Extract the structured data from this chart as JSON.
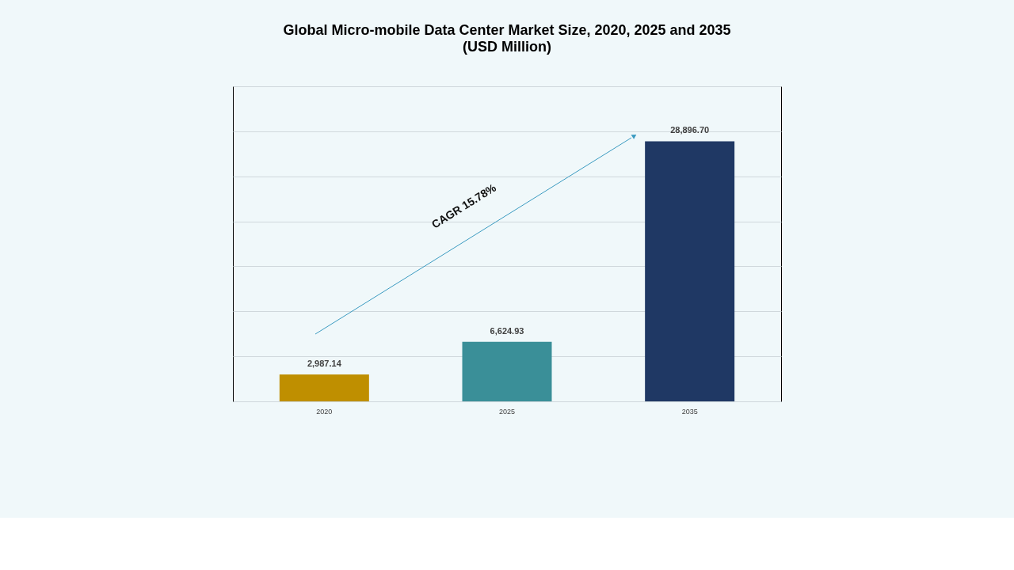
{
  "chart_data": {
    "type": "bar",
    "title": "Global Micro-mobile Data Center Market Size, 2020, 2025 and 2035",
    "subtitle": "(USD Million)",
    "categories": [
      "2020",
      "2025",
      "2035"
    ],
    "values": [
      2987.14,
      6624.93,
      28896.7
    ],
    "colors": [
      "#bf8f00",
      "#3a8f98",
      "#1f3864"
    ],
    "value_labels": [
      "2,987.14",
      "6,624.93",
      "28,896.70"
    ],
    "ylim": [
      0,
      35000
    ],
    "yticks": [
      {
        "value": 0,
        "label": null
      },
      {
        "value": 5000,
        "label": null
      },
      {
        "value": 10000,
        "label": null
      },
      {
        "value": 15000,
        "label": null
      },
      {
        "value": 20000,
        "label": null
      },
      {
        "value": 25000,
        "label": null
      },
      {
        "value": 30000,
        "label": null
      },
      {
        "value": 35000,
        "label": null
      }
    ],
    "tick_labels": "x",
    "grid": "y",
    "annotations": [
      "CAGR 15.78%"
    ]
  }
}
